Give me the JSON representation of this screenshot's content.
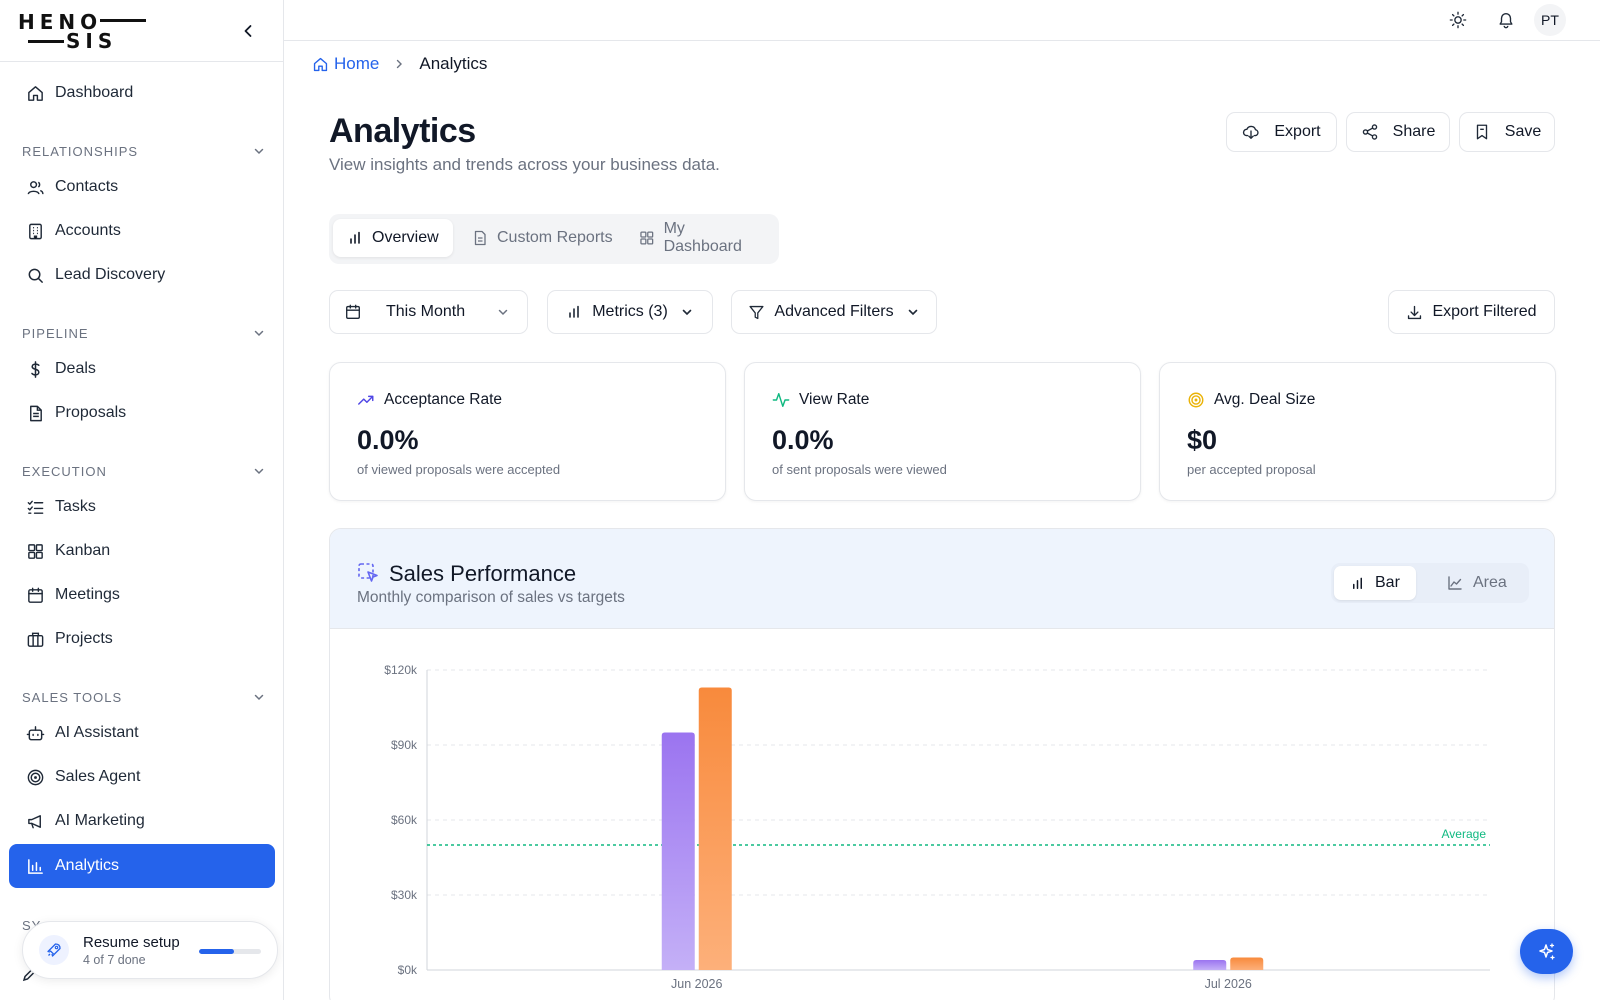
{
  "brand": {
    "line1": "HENO",
    "line2": "SIS"
  },
  "sidebar": {
    "top": {
      "label": "Dashboard",
      "icon": "home-icon"
    },
    "sections": [
      {
        "title": "RELATIONSHIPS",
        "items": [
          {
            "label": "Contacts",
            "icon": "users-icon"
          },
          {
            "label": "Accounts",
            "icon": "building-icon"
          },
          {
            "label": "Lead Discovery",
            "icon": "search-icon"
          }
        ]
      },
      {
        "title": "PIPELINE",
        "items": [
          {
            "label": "Deals",
            "icon": "dollar-icon"
          },
          {
            "label": "Proposals",
            "icon": "file-icon"
          }
        ]
      },
      {
        "title": "EXECUTION",
        "items": [
          {
            "label": "Tasks",
            "icon": "checklist-icon"
          },
          {
            "label": "Kanban",
            "icon": "grid-icon"
          },
          {
            "label": "Meetings",
            "icon": "calendar-icon"
          },
          {
            "label": "Projects",
            "icon": "briefcase-icon"
          }
        ]
      },
      {
        "title": "SALES TOOLS",
        "items": [
          {
            "label": "AI Assistant",
            "icon": "bot-icon"
          },
          {
            "label": "Sales Agent",
            "icon": "target-icon"
          },
          {
            "label": "AI Marketing",
            "icon": "megaphone-icon"
          },
          {
            "label": "Analytics",
            "icon": "bar-chart-icon",
            "active": true
          }
        ]
      }
    ],
    "peek_section": "SY",
    "setup": {
      "title": "Resume setup",
      "subtitle": "4 of 7 done",
      "progress": 0.57
    }
  },
  "topbar": {
    "icons": [
      "sun-icon",
      "bell-icon"
    ],
    "avatar": "PT"
  },
  "breadcrumb": {
    "home": "Home",
    "current": "Analytics"
  },
  "page": {
    "title": "Analytics",
    "subtitle": "View insights and trends across your business data."
  },
  "actions": {
    "export": "Export",
    "share": "Share",
    "save": "Save"
  },
  "tabs": [
    {
      "label": "Overview",
      "active": true
    },
    {
      "label": "Custom Reports"
    },
    {
      "label": "My Dashboard"
    }
  ],
  "filters": {
    "date_range": "This Month",
    "metrics": "Metrics (3)",
    "advanced": "Advanced Filters",
    "export_filtered": "Export Filtered"
  },
  "stats": [
    {
      "label": "Acceptance Rate",
      "value": "0.0%",
      "desc": "of viewed proposals were accepted",
      "icon": "trending-up-icon",
      "color": "#4f46e5"
    },
    {
      "label": "View Rate",
      "value": "0.0%",
      "desc": "of sent proposals were viewed",
      "icon": "activity-icon",
      "color": "#10b981"
    },
    {
      "label": "Avg. Deal Size",
      "value": "$0",
      "desc": "per accepted proposal",
      "icon": "target-icon",
      "color": "#eab308"
    }
  ],
  "chart_panel": {
    "title": "Sales Performance",
    "subtitle": "Monthly comparison of sales vs targets",
    "toggle": {
      "bar": "Bar",
      "area": "Area",
      "active": "Bar"
    }
  },
  "chart_data": {
    "type": "bar",
    "categories": [
      "Jun 2026",
      "Jul 2026"
    ],
    "series": [
      {
        "values": [
          95000,
          4000
        ],
        "color": "#a78bfa"
      },
      {
        "values": [
          113000,
          5000
        ],
        "color": "#fb923c"
      }
    ],
    "y_ticks": [
      "$0k",
      "$30k",
      "$60k",
      "$90k",
      "$120k"
    ],
    "ylim": [
      0,
      120000
    ],
    "reference_line": {
      "label": "Average",
      "value": 50000,
      "color": "#10b981"
    },
    "grid": true
  },
  "colors": {
    "accent": "#2563eb"
  }
}
